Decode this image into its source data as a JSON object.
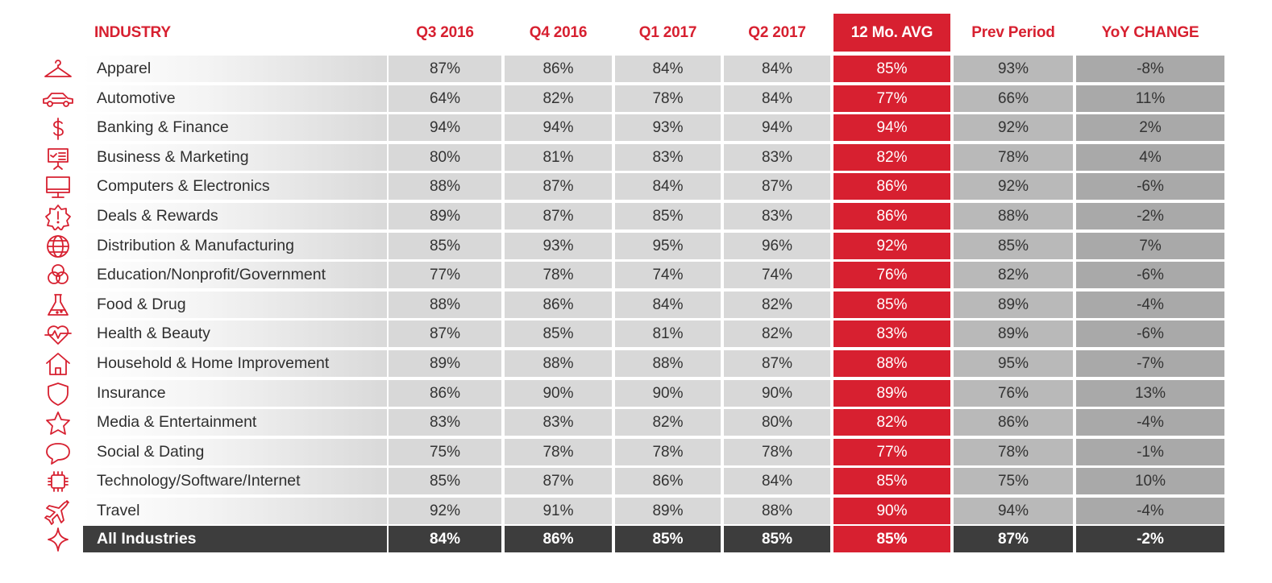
{
  "chart_data": {
    "type": "table",
    "columns": [
      "INDUSTRY",
      "Q3 2016",
      "Q4 2016",
      "Q1 2017",
      "Q2 2017",
      "12 Mo. AVG",
      "Prev Period",
      "YoY CHANGE"
    ],
    "rows": [
      {
        "industry": "Apparel",
        "icon": "hanger-icon",
        "values": [
          "87%",
          "86%",
          "84%",
          "84%",
          "85%",
          "93%",
          "-8%"
        ]
      },
      {
        "industry": "Automotive",
        "icon": "car-icon",
        "values": [
          "64%",
          "82%",
          "78%",
          "84%",
          "77%",
          "66%",
          "11%"
        ]
      },
      {
        "industry": "Banking & Finance",
        "icon": "dollar-icon",
        "values": [
          "94%",
          "94%",
          "93%",
          "94%",
          "94%",
          "92%",
          "2%"
        ]
      },
      {
        "industry": "Business & Marketing",
        "icon": "presentation-board-icon",
        "values": [
          "80%",
          "81%",
          "83%",
          "83%",
          "82%",
          "78%",
          "4%"
        ]
      },
      {
        "industry": "Computers & Electronics",
        "icon": "monitor-icon",
        "values": [
          "88%",
          "87%",
          "84%",
          "87%",
          "86%",
          "92%",
          "-6%"
        ]
      },
      {
        "industry": "Deals & Rewards",
        "icon": "badge-alert-icon",
        "values": [
          "89%",
          "87%",
          "85%",
          "83%",
          "86%",
          "88%",
          "-2%"
        ]
      },
      {
        "industry": "Distribution & Manufacturing",
        "icon": "globe-icon",
        "values": [
          "85%",
          "93%",
          "95%",
          "96%",
          "92%",
          "85%",
          "7%"
        ]
      },
      {
        "industry": "Education/Nonprofit/Government",
        "icon": "venn-circles-icon",
        "values": [
          "77%",
          "78%",
          "74%",
          "74%",
          "76%",
          "82%",
          "-6%"
        ]
      },
      {
        "industry": "Food & Drug",
        "icon": "flask-icon",
        "values": [
          "88%",
          "86%",
          "84%",
          "82%",
          "85%",
          "89%",
          "-4%"
        ]
      },
      {
        "industry": "Health & Beauty",
        "icon": "heartbeat-icon",
        "values": [
          "87%",
          "85%",
          "81%",
          "82%",
          "83%",
          "89%",
          "-6%"
        ]
      },
      {
        "industry": "Household & Home Improvement",
        "icon": "house-icon",
        "values": [
          "89%",
          "88%",
          "88%",
          "87%",
          "88%",
          "95%",
          "-7%"
        ]
      },
      {
        "industry": "Insurance",
        "icon": "shield-icon",
        "values": [
          "86%",
          "90%",
          "90%",
          "90%",
          "89%",
          "76%",
          "13%"
        ]
      },
      {
        "industry": "Media & Entertainment",
        "icon": "star-icon",
        "values": [
          "83%",
          "83%",
          "82%",
          "80%",
          "82%",
          "86%",
          "-4%"
        ]
      },
      {
        "industry": "Social & Dating",
        "icon": "speech-bubble-icon",
        "values": [
          "75%",
          "78%",
          "78%",
          "78%",
          "77%",
          "78%",
          "-1%"
        ]
      },
      {
        "industry": "Technology/Software/Internet",
        "icon": "chip-icon",
        "values": [
          "85%",
          "87%",
          "86%",
          "84%",
          "85%",
          "75%",
          "10%"
        ]
      },
      {
        "industry": "Travel",
        "icon": "airplane-icon",
        "values": [
          "92%",
          "91%",
          "89%",
          "88%",
          "90%",
          "94%",
          "-4%"
        ]
      }
    ],
    "total": {
      "industry": "All Industries",
      "icon": "sparkle-icon",
      "values": [
        "84%",
        "86%",
        "85%",
        "85%",
        "85%",
        "87%",
        "-2%"
      ]
    }
  },
  "colors": {
    "accent_red": "#d72030",
    "total_row": "#3d3d3d",
    "quarter_cell": "#d8d8d8",
    "prev_cell": "#b9b9b9",
    "yoy_cell": "#a9a9a9"
  }
}
